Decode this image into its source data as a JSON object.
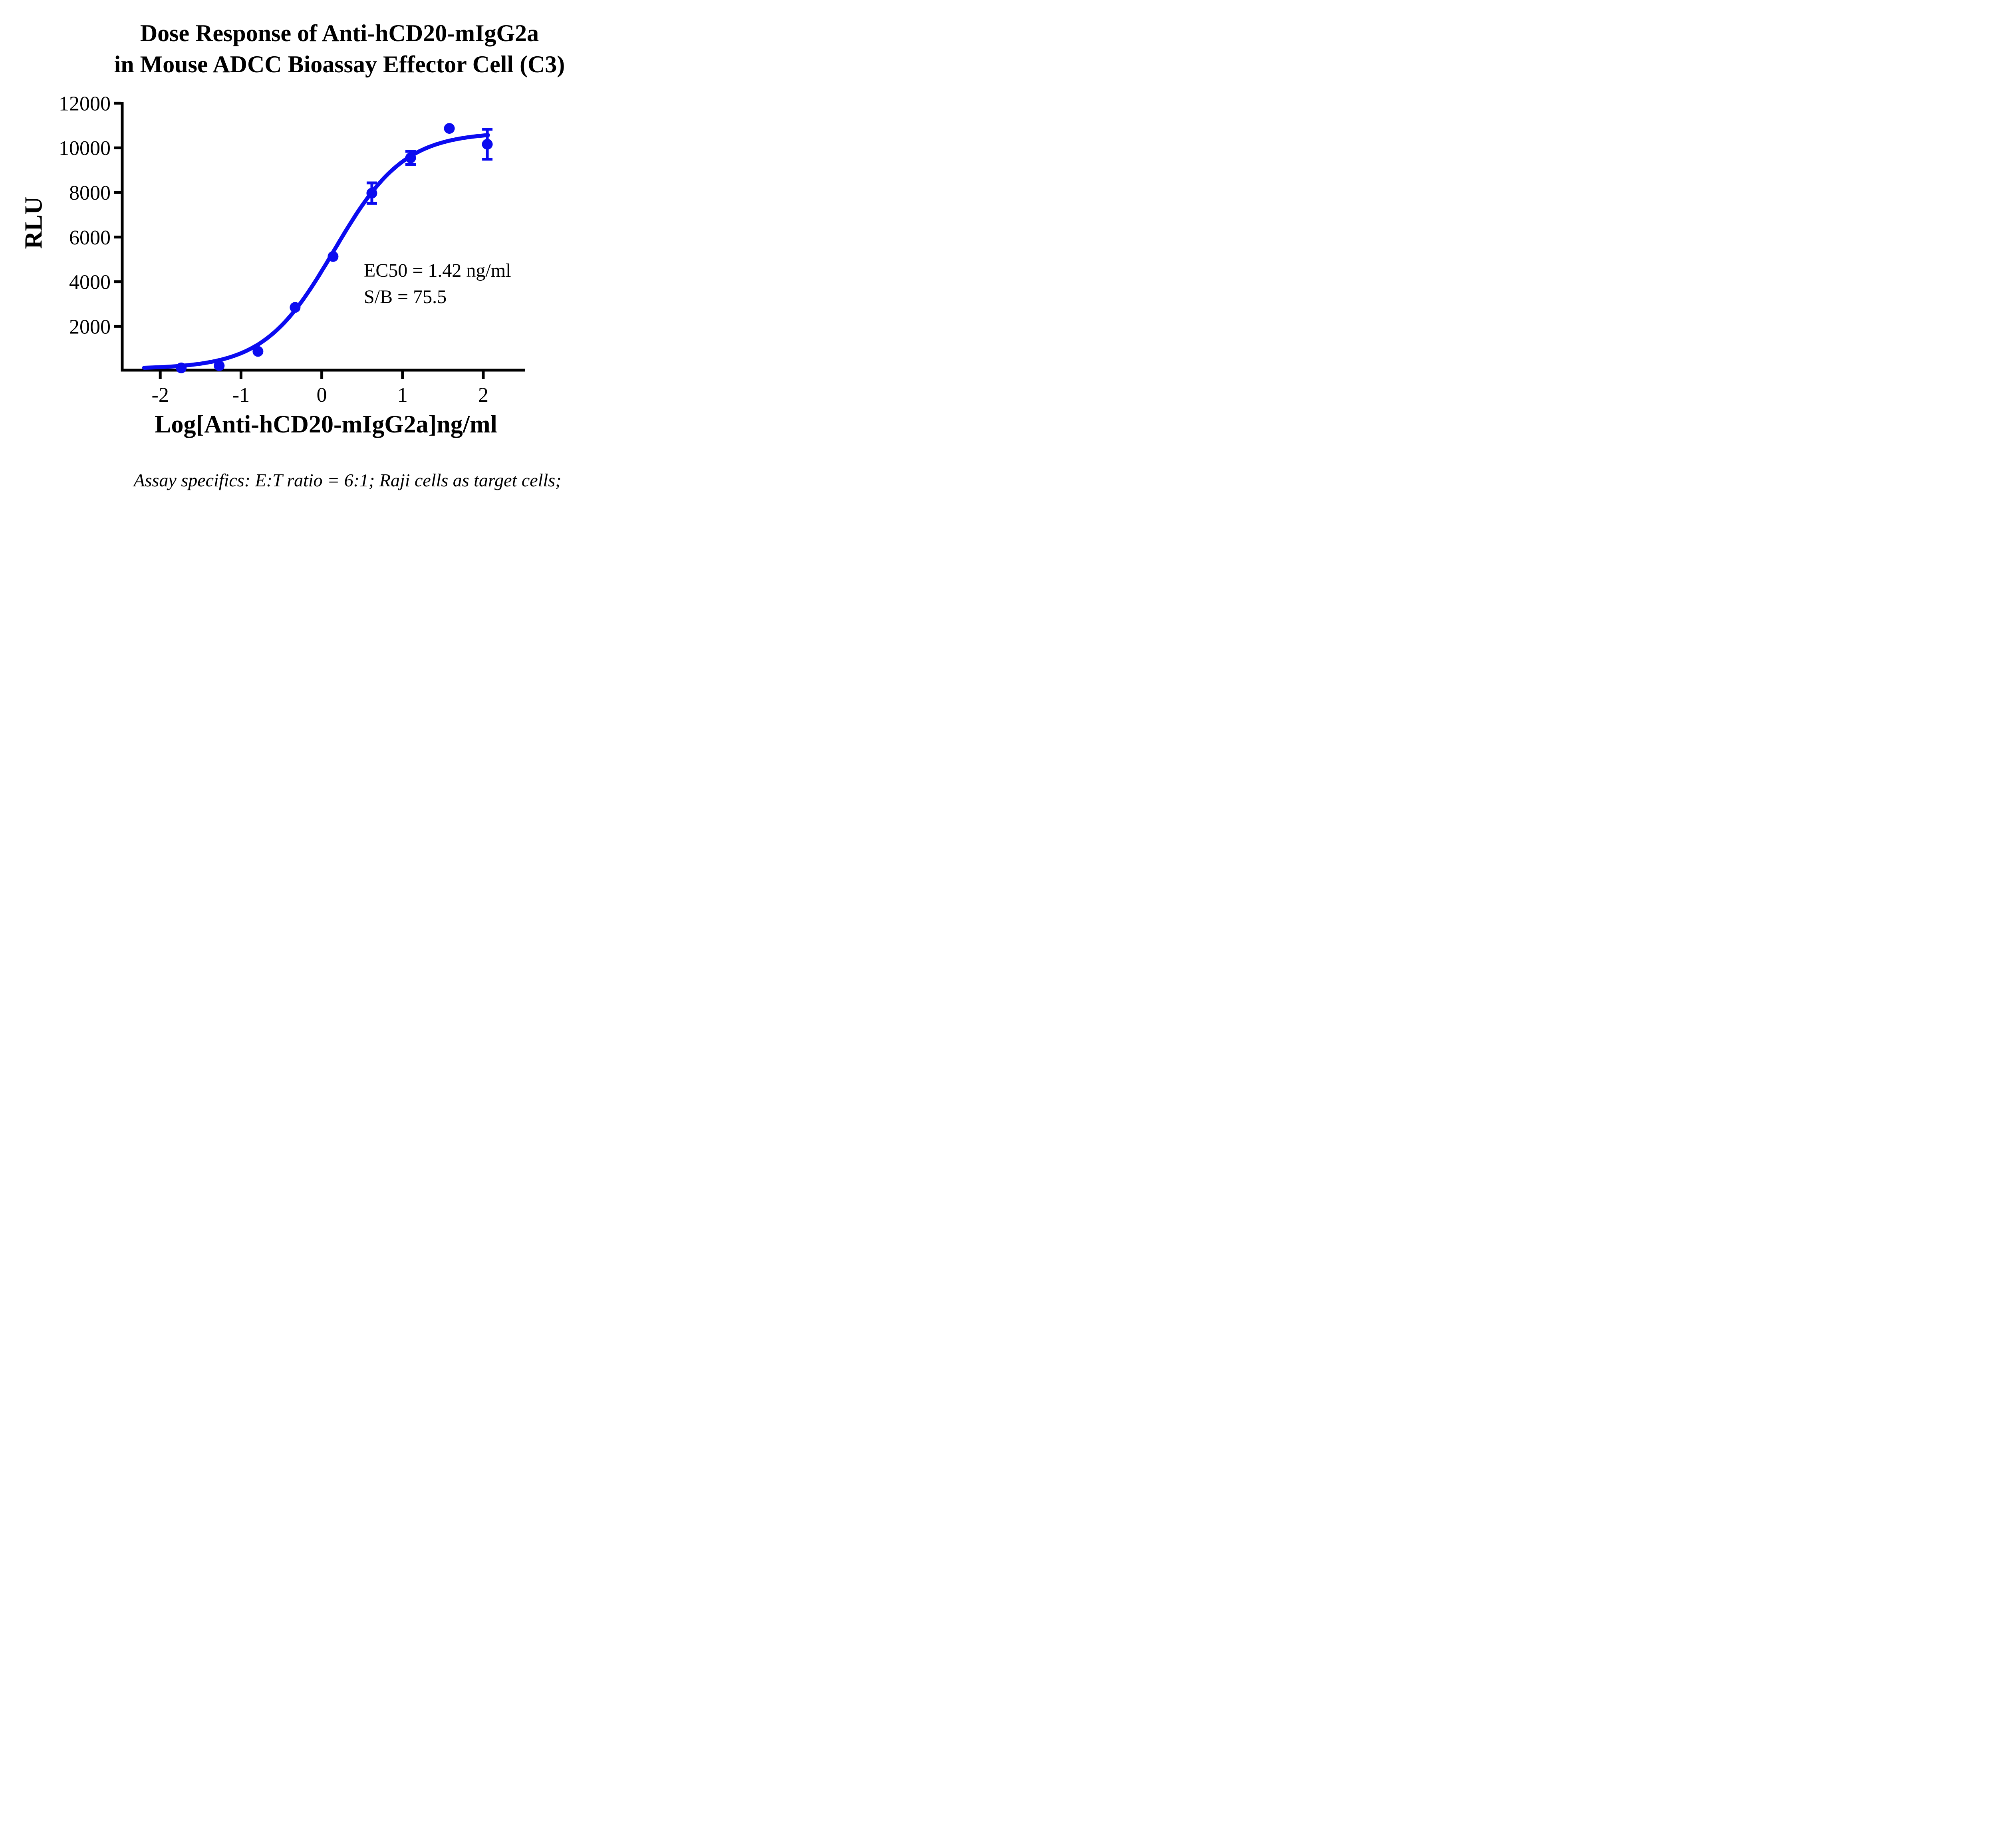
{
  "title": {
    "line1": "Dose Response of Anti-hCD20-mIgG2a",
    "line2": "in Mouse ADCC Bioassay Effector Cell (C3)"
  },
  "y_axis": {
    "label": "RLU",
    "tick_labels": [
      "2000",
      "4000",
      "6000",
      "8000",
      "10000",
      "12000"
    ],
    "tick_values": [
      2000,
      4000,
      6000,
      8000,
      10000,
      12000
    ],
    "range": [
      0,
      12000
    ]
  },
  "x_axis": {
    "label": "Log[Anti-hCD20-mIgG2a]ng/ml",
    "tick_labels": [
      "-2",
      "-1",
      "0",
      "1",
      "2"
    ],
    "tick_values": [
      -2,
      -1,
      0,
      1,
      2
    ],
    "range": [
      -2.52,
      2.41
    ]
  },
  "annotation": {
    "ec50_label": "EC50 = 1.42 ng/ml",
    "sb_label": "S/B = 75.5"
  },
  "footnote": "Assay specifics: E:T ratio = 6:1; Raji cells as target cells;",
  "colors": {
    "series": "#0B0BF0",
    "axis": "#000000",
    "text": "#000000",
    "background": "#FFFFFF"
  },
  "chart_data": {
    "type": "scatter",
    "title": "Dose Response of Anti-hCD20-mIgG2a in Mouse ADCC Bioassay Effector Cell (C3)",
    "xlabel": "Log[Anti-hCD20-mIgG2a]ng/ml",
    "ylabel": "RLU",
    "xlim": [
      -2.52,
      2.41
    ],
    "ylim": [
      0,
      12000
    ],
    "grid": false,
    "legend": "none",
    "series": [
      {
        "name": "Anti-hCD20-mIgG2a",
        "marker": "circle",
        "x": [
          -1.74,
          -1.27,
          -0.79,
          -0.33,
          0.14,
          0.62,
          1.1,
          1.58,
          2.05
        ],
        "y": [
          140,
          240,
          880,
          2850,
          5130,
          7970,
          9550,
          10870,
          10160
        ],
        "y_err": [
          0,
          0,
          0,
          0,
          0,
          460,
          290,
          0,
          670
        ]
      }
    ],
    "fit_curve": {
      "model": "4PL",
      "bottom": 100,
      "top": 10700,
      "log_ec50": 0.152,
      "hill": 1.0,
      "x_start": -2.2,
      "x_end": 2.06
    },
    "ec50_ng_ml": 1.42,
    "signal_to_background": 75.5
  }
}
